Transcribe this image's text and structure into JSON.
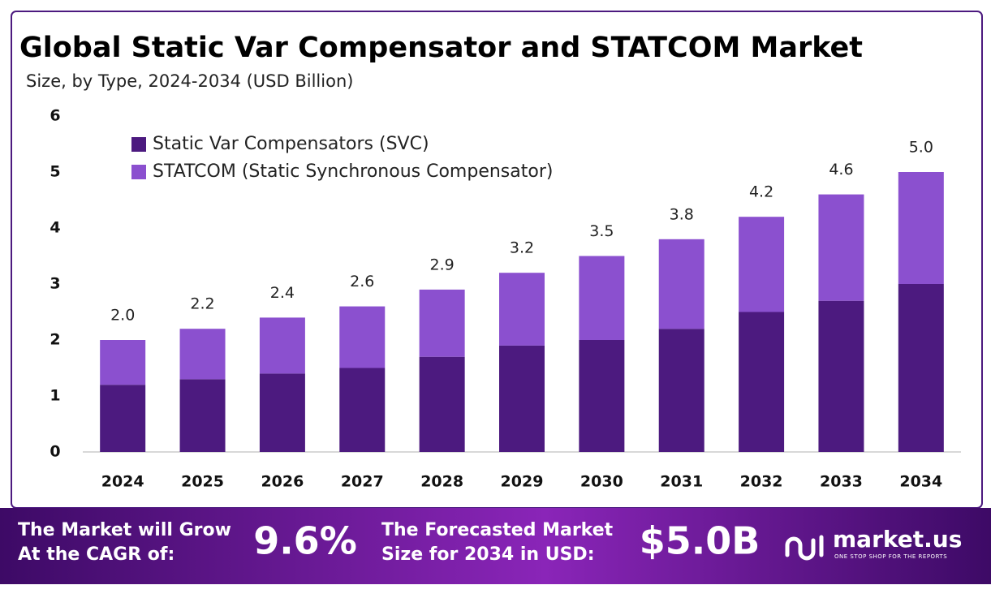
{
  "chart_data": {
    "type": "stacked_bar",
    "title": "Global Static Var Compensator and STATCOM Market",
    "subtitle": "Size, by Type, 2024-2034 (USD Billion)",
    "categories": [
      "2024",
      "2025",
      "2026",
      "2027",
      "2028",
      "2029",
      "2030",
      "2031",
      "2032",
      "2033",
      "2034"
    ],
    "series": [
      {
        "name": "Static Var Compensators (SVC)",
        "color": "#4c1a7f",
        "values": [
          1.2,
          1.3,
          1.4,
          1.5,
          1.7,
          1.9,
          2.0,
          2.2,
          2.5,
          2.7,
          3.0
        ]
      },
      {
        "name": "STATCOM (Static Synchronous Compensator)",
        "color": "#8b50cf",
        "values": [
          0.8,
          0.9,
          1.0,
          1.1,
          1.2,
          1.3,
          1.5,
          1.6,
          1.7,
          1.9,
          2.0
        ]
      }
    ],
    "totals": [
      2.0,
      2.2,
      2.4,
      2.6,
      2.9,
      3.2,
      3.5,
      3.8,
      4.2,
      4.6,
      5.0
    ],
    "total_labels": [
      "2.0",
      "2.2",
      "2.4",
      "2.6",
      "2.9",
      "3.2",
      "3.5",
      "3.8",
      "4.2",
      "4.6",
      "5.0"
    ],
    "ylim": [
      0,
      6
    ],
    "yticks": [
      0,
      1,
      2,
      3,
      4,
      5,
      6
    ],
    "grid": false,
    "legend": "top-left"
  },
  "footer": {
    "cagr_text": [
      "The Market will Grow",
      "At the CAGR of:"
    ],
    "cagr_value": "9.6%",
    "forecast_text": [
      "The Forecasted Market",
      "Size for 2034 in USD:"
    ],
    "forecast_value": "$5.0B",
    "brand": "market.us",
    "tagline": "ONE STOP SHOP FOR THE REPORTS"
  }
}
